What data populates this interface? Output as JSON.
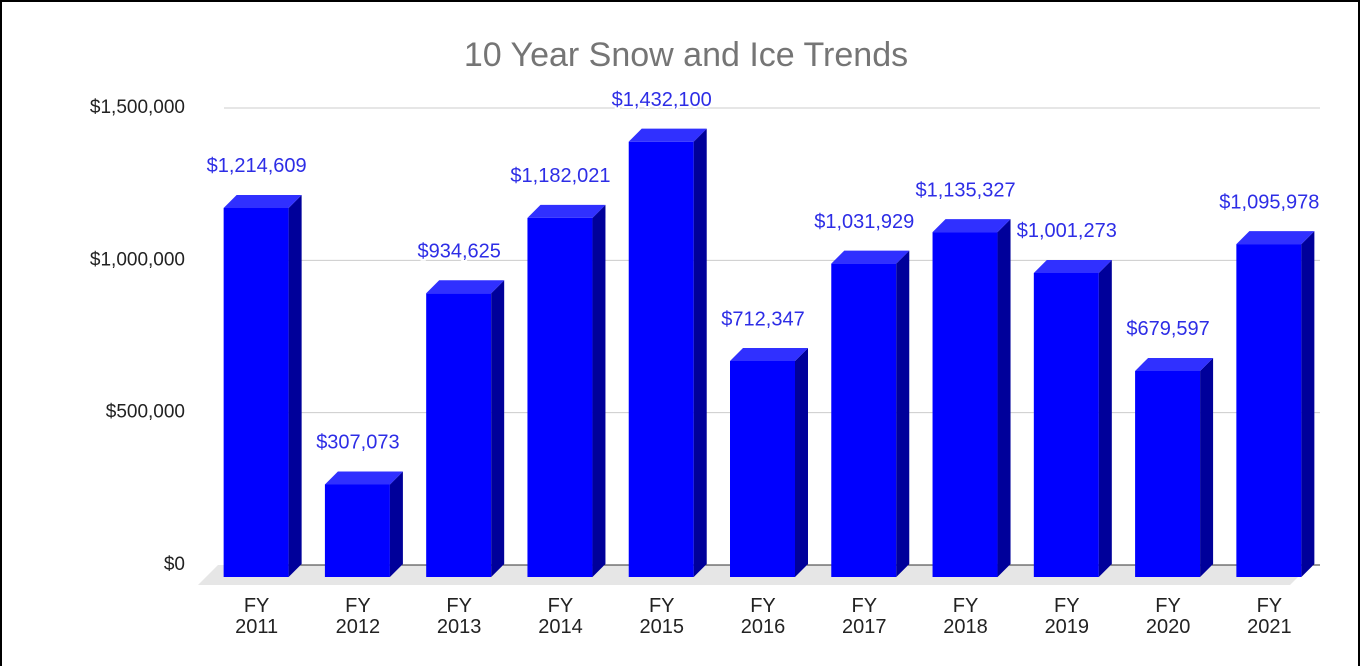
{
  "chart_data": {
    "type": "bar3d",
    "title": "10 Year Snow and Ice Trends",
    "categories": [
      "FY 2011",
      "FY 2012",
      "FY 2013",
      "FY 2014",
      "FY 2015",
      "FY 2016",
      "FY 2017",
      "FY 2018",
      "FY 2019",
      "FY 2020",
      "FY 2021"
    ],
    "values": [
      1214609,
      307073,
      934625,
      1182021,
      1432100,
      712347,
      1031929,
      1135327,
      1001273,
      679597,
      1095978
    ],
    "value_labels": [
      "$1,214,609",
      "$307,073",
      "$934,625",
      "$1,182,021",
      "$1,432,100",
      "$712,347",
      "$1,031,929",
      "$1,135,327",
      "$1,001,273",
      "$679,597",
      "$1,095,978"
    ],
    "color": "#0000ff",
    "ylim": [
      0,
      1500000
    ],
    "yticks": [
      {
        "value": 0,
        "label": "$0"
      },
      {
        "value": 500000,
        "label": "$500,000"
      },
      {
        "value": 1000000,
        "label": "$1,000,000"
      },
      {
        "value": 1500000,
        "label": "$1,500,000"
      }
    ],
    "grid": true
  }
}
